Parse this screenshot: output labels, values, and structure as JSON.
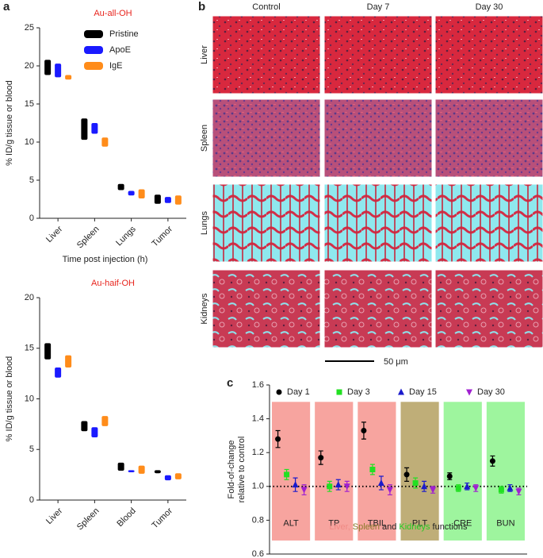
{
  "panel_labels": [
    "a",
    "b",
    "c"
  ],
  "panel_b": {
    "columns": [
      "Control",
      "Day 7",
      "Day 30"
    ],
    "rows": [
      "Liver",
      "Spleen",
      "Lungs",
      "Kidneys"
    ],
    "scale_bar": "50 μm"
  },
  "chart_data": [
    {
      "type": "bar",
      "title": "Au-all-OH",
      "x_label": "Time post injection (h)",
      "y_label": "% ID/g tissue or blood",
      "categories": [
        "Liver",
        "Spleen",
        "Lungs",
        "Tumor"
      ],
      "series": [
        {
          "name": "Pristine",
          "color": "#000000",
          "values": [
            19.8,
            11.7,
            4.1,
            2.5
          ],
          "errors": [
            1.0,
            1.4,
            0.4,
            0.6
          ]
        },
        {
          "name": "ApoE",
          "color": "#1a1aff",
          "values": [
            19.4,
            11.8,
            3.3,
            2.4
          ],
          "errors": [
            0.9,
            0.7,
            0.3,
            0.4
          ]
        },
        {
          "name": "IgE",
          "color": "#ff8c1a",
          "values": [
            18.5,
            10.0,
            3.2,
            2.4
          ],
          "errors": [
            0.3,
            0.6,
            0.6,
            0.6
          ]
        }
      ],
      "ylim": [
        0,
        25
      ],
      "yticks": [
        0,
        5,
        10,
        15,
        20,
        25
      ],
      "legend": "upper right"
    },
    {
      "type": "bar",
      "title": "Au-haif-OH",
      "y_label": "% ID/g tissue or blood",
      "categories": [
        "Liver",
        "Spleen",
        "Blood",
        "Tumor"
      ],
      "series": [
        {
          "name": "Pristine",
          "color": "#000000",
          "values": [
            14.7,
            7.3,
            3.3,
            2.8
          ],
          "errors": [
            0.8,
            0.5,
            0.4,
            0.15
          ]
        },
        {
          "name": "ApoE",
          "color": "#1a1aff",
          "values": [
            12.6,
            6.7,
            2.85,
            2.2
          ],
          "errors": [
            0.5,
            0.5,
            0.1,
            0.25
          ]
        },
        {
          "name": "IgE",
          "color": "#ff8c1a",
          "values": [
            13.7,
            7.8,
            3.0,
            2.35
          ],
          "errors": [
            0.6,
            0.5,
            0.4,
            0.3
          ]
        }
      ],
      "ylim": [
        0,
        20
      ],
      "yticks": [
        0,
        5,
        10,
        15,
        20
      ]
    },
    {
      "type": "scatter",
      "y_label": [
        "Fold-of-change",
        "relative to control"
      ],
      "categories": [
        "ALT",
        "TP",
        "TBIL",
        "PLT",
        "CRE",
        "BUN"
      ],
      "category_colors": [
        "#f7a49f",
        "#f7a49f",
        "#f7a49f",
        "#bfae78",
        "#9ef59e",
        "#9ef59e"
      ],
      "series": [
        {
          "name": "Day 1",
          "color": "#000000",
          "marker": "circle",
          "values": [
            1.28,
            1.17,
            1.33,
            1.07,
            1.06,
            1.15
          ],
          "errors": [
            0.05,
            0.04,
            0.05,
            0.04,
            0.02,
            0.03
          ]
        },
        {
          "name": "Day 3",
          "color": "#22e022",
          "marker": "square",
          "values": [
            1.07,
            1.0,
            1.1,
            1.02,
            0.99,
            0.98
          ],
          "errors": [
            0.03,
            0.03,
            0.03,
            0.03,
            0.02,
            0.02
          ]
        },
        {
          "name": "Day 15",
          "color": "#1a1acc",
          "marker": "triangle",
          "values": [
            1.01,
            1.01,
            1.02,
            1.0,
            1.0,
            0.99
          ],
          "errors": [
            0.04,
            0.03,
            0.04,
            0.03,
            0.02,
            0.02
          ]
        },
        {
          "name": "Day 30",
          "color": "#a020d0",
          "marker": "triangle-down",
          "values": [
            0.98,
            1.0,
            0.98,
            0.98,
            0.99,
            0.97
          ],
          "errors": [
            0.03,
            0.03,
            0.03,
            0.02,
            0.02,
            0.02
          ]
        }
      ],
      "ylim": [
        0.6,
        1.6
      ],
      "yticks": [
        0.6,
        0.8,
        {
          "value": 1,
          "label": "1.0"
        },
        1.2,
        1.4,
        1.6
      ],
      "reference_line": 1,
      "caption_parts": [
        {
          "text": "Liver,",
          "color": "#f08a84"
        },
        {
          "text": "Spleen",
          "color": "#8a7a2a"
        },
        {
          "text": "and",
          "color": "#222222"
        },
        {
          "text": "Kidneys",
          "color": "#22cc22"
        },
        {
          "text": "functions",
          "color": "#222222"
        }
      ]
    }
  ]
}
